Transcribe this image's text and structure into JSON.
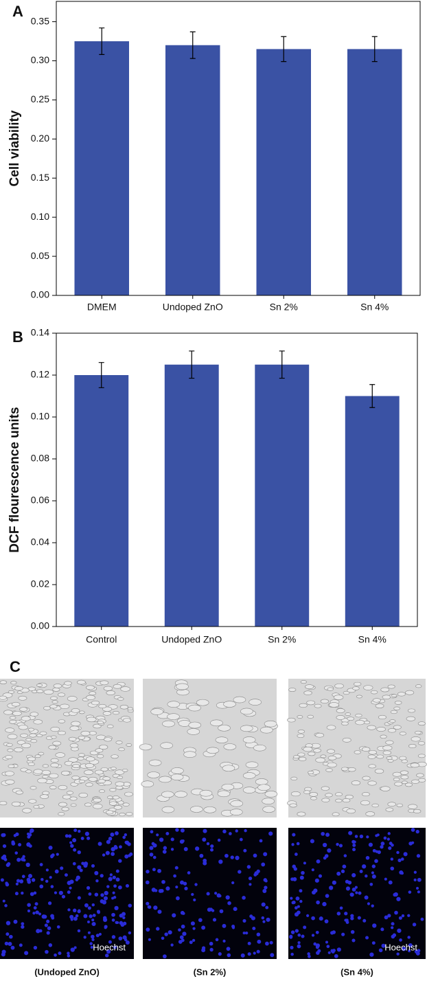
{
  "chart_data": [
    {
      "type": "bar",
      "panel_label": "A",
      "y_label": "Cell viability",
      "categories": [
        "DMEM",
        "Undoped ZnO",
        "Sn 2%",
        "Sn 4%"
      ],
      "values": [
        0.325,
        0.32,
        0.315,
        0.315
      ],
      "errors": [
        0.017,
        0.017,
        0.016,
        0.016
      ],
      "color": "#3a52a4",
      "ylim": [
        0,
        0.376
      ],
      "yticks": [
        {
          "value": 0,
          "label": "0.00"
        },
        {
          "value": 0.05,
          "label": "0.05"
        },
        {
          "value": 0.1,
          "label": "0.10"
        },
        {
          "value": 0.15,
          "label": "0.15"
        },
        {
          "value": 0.2,
          "label": "0.20"
        },
        {
          "value": 0.25,
          "label": "0.25"
        },
        {
          "value": 0.3,
          "label": "0.30"
        },
        {
          "value": 0.35,
          "label": "0.35"
        }
      ]
    },
    {
      "type": "bar",
      "panel_label": "B",
      "y_label": "DCF flourescence units",
      "categories": [
        "Control",
        "Undoped ZnO",
        "Sn 2%",
        "Sn 4%"
      ],
      "values": [
        0.12,
        0.125,
        0.125,
        0.11
      ],
      "errors": [
        0.006,
        0.0065,
        0.0065,
        0.0055
      ],
      "color": "#3a52a4",
      "ylim": [
        0,
        0.14
      ],
      "yticks": [
        {
          "value": 0,
          "label": "0.00"
        },
        {
          "value": 0.02,
          "label": "0.02"
        },
        {
          "value": 0.04,
          "label": "0.04"
        },
        {
          "value": 0.06,
          "label": "0.06"
        },
        {
          "value": 0.08,
          "label": "0.08"
        },
        {
          "value": 0.1,
          "label": "0.10"
        },
        {
          "value": 0.12,
          "label": "0.12"
        },
        {
          "value": 0.14,
          "label": "0.14"
        }
      ]
    }
  ],
  "panel_c": {
    "label": "C",
    "stain_label": "Hoechst",
    "captions": [
      "(Undoped ZnO)",
      "(Sn 2%)",
      "(Sn 4%)"
    ]
  }
}
